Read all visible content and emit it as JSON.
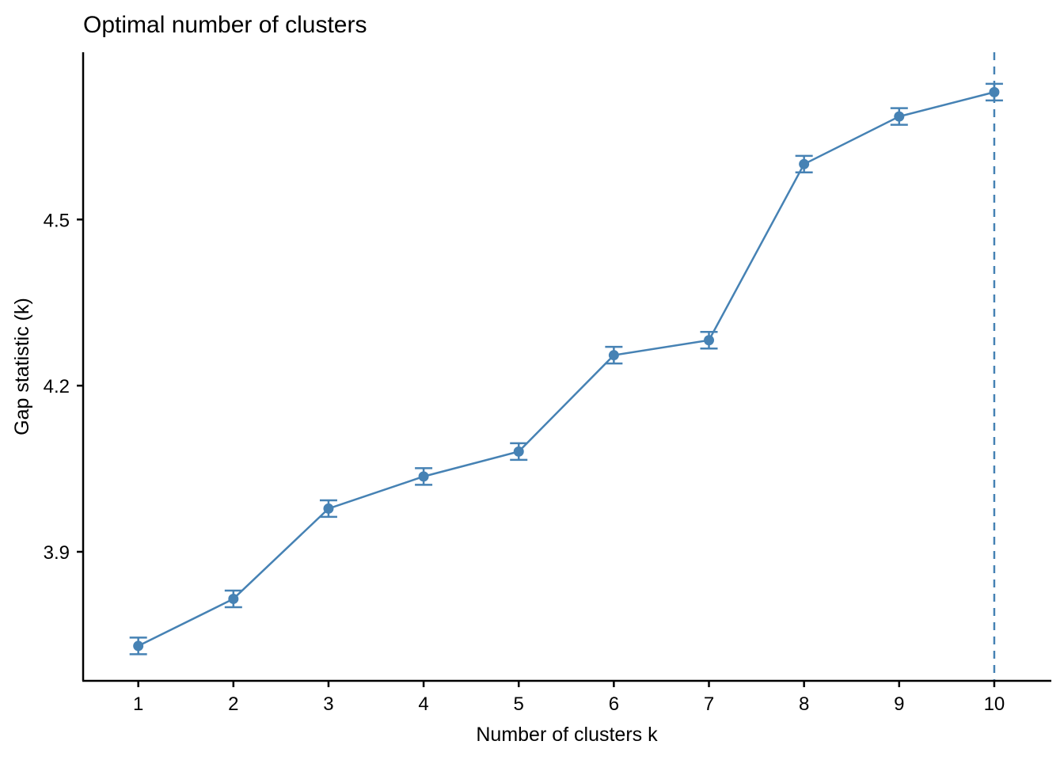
{
  "chart_data": {
    "type": "line",
    "title": "Optimal number of clusters",
    "xlabel": "Number of clusters k",
    "ylabel": "Gap statistic (k)",
    "x": [
      1,
      2,
      3,
      4,
      5,
      6,
      7,
      8,
      9,
      10
    ],
    "x_tick_labels": [
      "1",
      "2",
      "3",
      "4",
      "5",
      "6",
      "7",
      "8",
      "9",
      "10"
    ],
    "y_ticks": [
      3.9,
      4.2,
      4.5
    ],
    "y_tick_labels": [
      "3.9",
      "4.2",
      "4.5"
    ],
    "xlim": [
      0.42,
      10.6
    ],
    "ylim": [
      3.667,
      4.802
    ],
    "series": [
      {
        "name": "Gap statistic",
        "color": "#4682B4",
        "values": [
          3.73,
          3.815,
          3.978,
          4.036,
          4.081,
          4.255,
          4.282,
          4.6,
          4.686,
          4.73
        ],
        "error_low": [
          3.715,
          3.8,
          3.963,
          4.021,
          4.066,
          4.24,
          4.267,
          4.585,
          4.671,
          4.715
        ],
        "error_high": [
          3.745,
          3.83,
          3.993,
          4.051,
          4.096,
          4.27,
          4.297,
          4.615,
          4.701,
          4.745
        ]
      }
    ],
    "optimal_k": 10,
    "optimal_line_color": "#4682B4",
    "optimal_line_style": "dashed",
    "grid": false,
    "legend": "none"
  }
}
